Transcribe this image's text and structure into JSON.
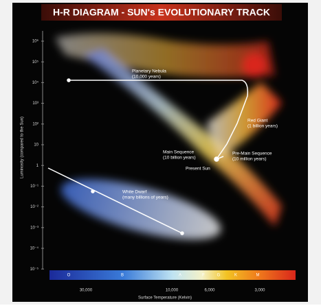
{
  "title": "H-R DIAGRAM - SUN's EVOLUTIONARY TRACK",
  "y_axis": {
    "label": "Luminosity (compared to the Sun)",
    "ticks": [
      "10⁶",
      "10⁵",
      "10⁴",
      "10³",
      "10²",
      "10",
      "1",
      "10⁻¹",
      "10⁻²",
      "10⁻³",
      "10⁻⁴",
      "10⁻⁵"
    ]
  },
  "x_axis": {
    "label": "Surface Temperature (Kelvin)",
    "ticks": [
      "30,000",
      "10,000",
      "6,000",
      "3,000"
    ]
  },
  "spectral_classes": [
    "O",
    "B",
    "A",
    "F",
    "G",
    "K",
    "M"
  ],
  "labels": [
    {
      "name": "Planetary Nebula",
      "duration": "(10,000 years)"
    },
    {
      "name": "Red Giant",
      "duration": "(1 billion years)"
    },
    {
      "name": "Main Sequence",
      "duration": "(10 billion years)"
    },
    {
      "name": "Pre-Main Sequence",
      "duration": "(10 million years)"
    },
    {
      "name": "Present Sun"
    },
    {
      "name": "White Dwarf",
      "duration": "(many billions of years)"
    }
  ]
}
